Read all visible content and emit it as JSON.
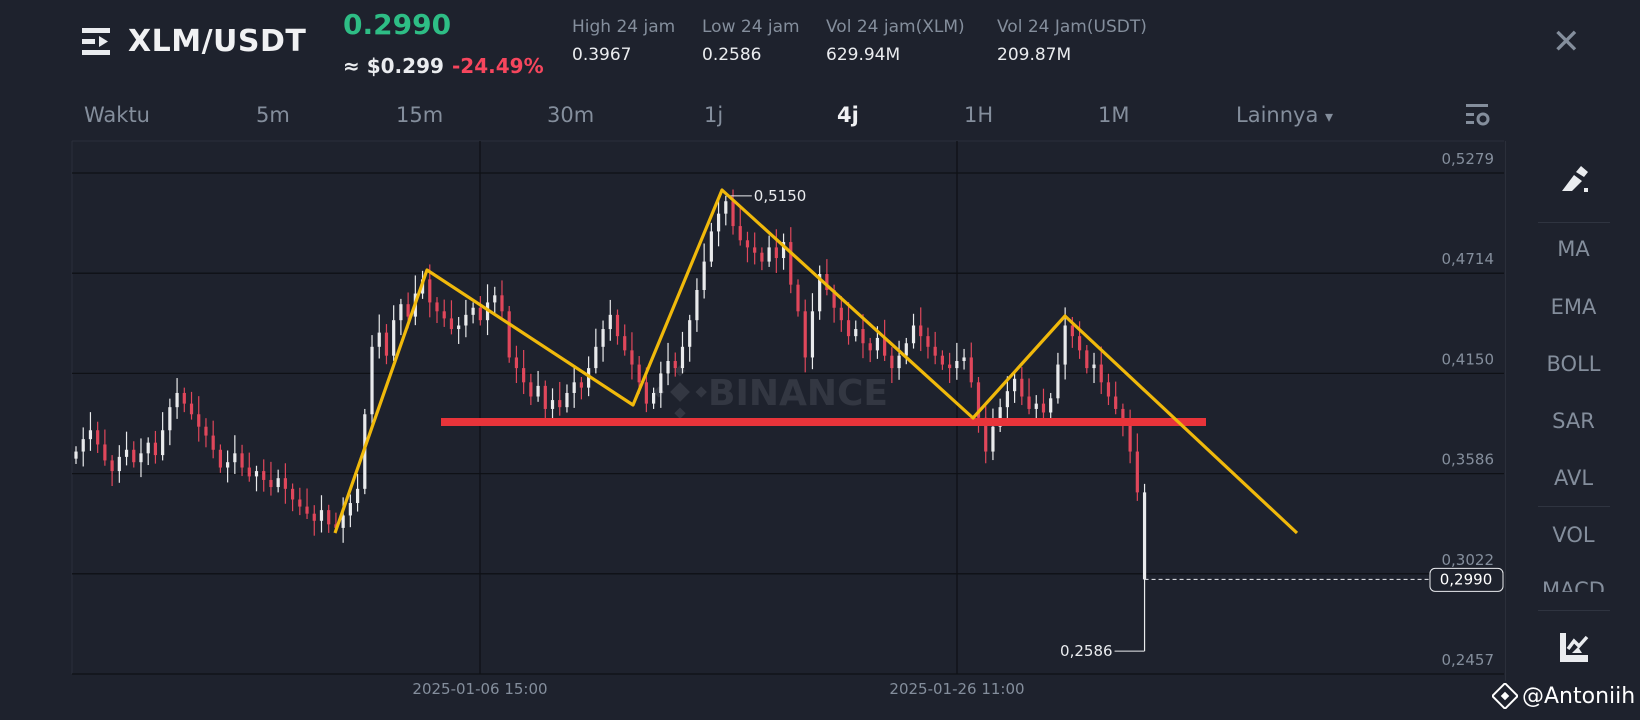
{
  "header": {
    "pair": "XLM/USDT",
    "last_price": "0.2990",
    "approx_usd": "≈ $0.299",
    "change_pct": "-24.49%",
    "stats": [
      {
        "label": "High 24 jam",
        "value": "0.3967"
      },
      {
        "label": "Low 24 jam",
        "value": "0.2586"
      },
      {
        "label": "Vol 24 jam(XLM)",
        "value": "629.94M"
      },
      {
        "label": "Vol 24 Jam(USDT)",
        "value": "209.87M"
      }
    ],
    "close_label": "✕",
    "menu_icon": "menu-collapse-icon"
  },
  "intervals": {
    "items": [
      "Waktu",
      "5m",
      "15m",
      "30m",
      "1j",
      "4j",
      "1H",
      "1M"
    ],
    "active": "4j",
    "more_label": "Lainnya",
    "more_caret": "▾",
    "settings_icon": "chart-settings-icon"
  },
  "sidebar": {
    "draw_icon": "pencil-draw-icon",
    "indicators": [
      "MA",
      "EMA",
      "BOLL",
      "SAR",
      "AVL",
      "VOL",
      "MACD"
    ],
    "chart_icon": "chart-type-icon"
  },
  "watermark": {
    "text": "BINANCE"
  },
  "credit": {
    "text": "@Antoniih"
  },
  "colors": {
    "up": "#e9eaec",
    "down": "#e0475b",
    "price_up": "#2ebd85",
    "price_down": "#f6465d",
    "trend": "#f0b90b",
    "support": "#e8343a"
  },
  "chart_data": {
    "type": "candlestick",
    "interval": "4j",
    "y_ticks": [
      "0,5279",
      "0,4714",
      "0,4150",
      "0,3586",
      "0,3022",
      "0,2457"
    ],
    "y_tick_values": [
      0.5279,
      0.4714,
      0.415,
      0.3586,
      0.3022,
      0.2457
    ],
    "x_ticks": [
      "2025-01-06 15:00",
      "2025-01-26 11:00"
    ],
    "grid": true,
    "last_price_label": "0,2990",
    "last_price": 0.299,
    "high_annotation": {
      "label": "0,5150",
      "value": 0.515
    },
    "low_annotation": {
      "label": "0,2586",
      "value": 0.2586
    },
    "closes": [
      0.371,
      0.378,
      0.383,
      0.375,
      0.366,
      0.36,
      0.368,
      0.372,
      0.365,
      0.37,
      0.376,
      0.369,
      0.383,
      0.396,
      0.404,
      0.398,
      0.392,
      0.385,
      0.38,
      0.372,
      0.362,
      0.365,
      0.37,
      0.362,
      0.357,
      0.36,
      0.355,
      0.351,
      0.356,
      0.35,
      0.344,
      0.34,
      0.336,
      0.332,
      0.338,
      0.33,
      0.328,
      0.335,
      0.342,
      0.35,
      0.392,
      0.43,
      0.438,
      0.425,
      0.445,
      0.454,
      0.447,
      0.46,
      0.468,
      0.455,
      0.45,
      0.446,
      0.44,
      0.442,
      0.448,
      0.452,
      0.445,
      0.455,
      0.459,
      0.45,
      0.424,
      0.418,
      0.41,
      0.402,
      0.408,
      0.395,
      0.4,
      0.396,
      0.404,
      0.41,
      0.407,
      0.418,
      0.43,
      0.44,
      0.448,
      0.436,
      0.428,
      0.42,
      0.41,
      0.398,
      0.404,
      0.415,
      0.422,
      0.418,
      0.43,
      0.445,
      0.462,
      0.478,
      0.495,
      0.505,
      0.512,
      0.498,
      0.49,
      0.486,
      0.483,
      0.478,
      0.486,
      0.48,
      0.489,
      0.465,
      0.45,
      0.424,
      0.45,
      0.471,
      0.462,
      0.452,
      0.445,
      0.436,
      0.44,
      0.432,
      0.428,
      0.435,
      0.425,
      0.418,
      0.425,
      0.432,
      0.442,
      0.436,
      0.43,
      0.425,
      0.42,
      0.418,
      0.422,
      0.424,
      0.41,
      0.39,
      0.371,
      0.385,
      0.396,
      0.405,
      0.412,
      0.402,
      0.395,
      0.398,
      0.393,
      0.401,
      0.42,
      0.442,
      0.436,
      0.428,
      0.418,
      0.42,
      0.41,
      0.402,
      0.395,
      0.388,
      0.371,
      0.348,
      0.299
    ]
  }
}
